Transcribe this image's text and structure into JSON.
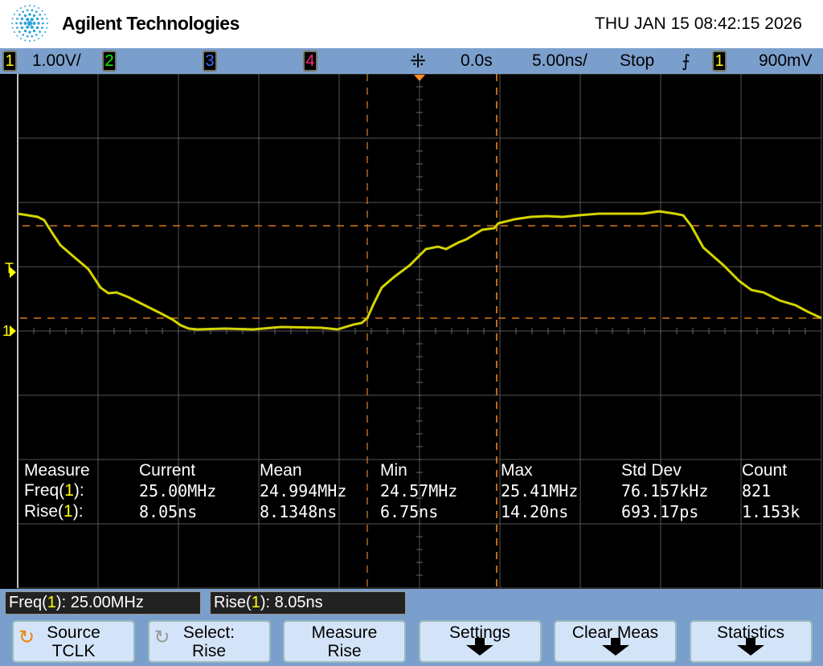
{
  "header": {
    "brand": "Agilent Technologies",
    "datetime": "THU JAN 15 08:42:15 2026"
  },
  "statusbar": {
    "ch1": "1",
    "ch1_scale": "1.00V/",
    "ch2": "2",
    "ch3": "3",
    "ch4": "4",
    "delay": "0.0s",
    "timebase": "5.00ns/",
    "run_state": "Stop",
    "trigger_source": "1",
    "trigger_level": "900mV",
    "colors": {
      "ch1": "#ffff00",
      "ch2": "#00ff00",
      "ch3": "#3a6cff",
      "ch4": "#ff2a80"
    }
  },
  "screen": {
    "trigger_marker": "T",
    "ch1_marker": "1",
    "trace_color": "#d4d400",
    "cursor_color": "#ff8c1a"
  },
  "measurements": {
    "headers": [
      "Measure",
      "Current",
      "Mean",
      "Min",
      "Max",
      "Std Dev",
      "Count"
    ],
    "rows": [
      {
        "name": "Freq",
        "ch": "1",
        "values": [
          "25.00MHz",
          "24.994MHz",
          "24.57MHz",
          "25.41MHz",
          "76.157kHz",
          "821"
        ]
      },
      {
        "name": "Rise",
        "ch": "1",
        "values": [
          "8.05ns",
          "8.1348ns",
          "6.75ns",
          "14.20ns",
          "693.17ps",
          "1.153k"
        ]
      }
    ]
  },
  "readouts": [
    {
      "name": "Freq",
      "ch": "1",
      "value": ": 25.00MHz"
    },
    {
      "name": "Rise",
      "ch": "1",
      "value": ": 8.05ns"
    }
  ],
  "softkeys": [
    {
      "line1": "Source",
      "line2": "TCLK",
      "icon": "rotate-knob-icon"
    },
    {
      "line1": "Select:",
      "line2": "Rise",
      "icon": "rotate-knob-icon"
    },
    {
      "line1": "Measure",
      "line2": "Rise"
    },
    {
      "line1": "Settings",
      "icon": "arrow-down-icon"
    },
    {
      "line1": "Clear Meas",
      "icon": "arrow-down-icon"
    },
    {
      "line1": "Statistics",
      "icon": "arrow-down-icon"
    }
  ]
}
